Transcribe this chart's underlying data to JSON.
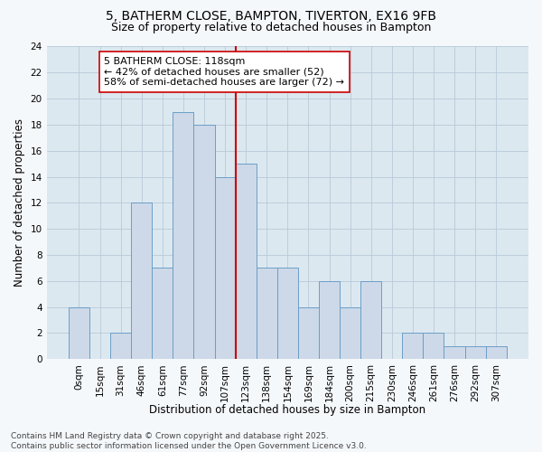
{
  "title_line1": "5, BATHERM CLOSE, BAMPTON, TIVERTON, EX16 9FB",
  "title_line2": "Size of property relative to detached houses in Bampton",
  "xlabel": "Distribution of detached houses by size in Bampton",
  "ylabel": "Number of detached properties",
  "bar_values": [
    4,
    0,
    2,
    12,
    7,
    19,
    18,
    14,
    15,
    7,
    7,
    4,
    6,
    4,
    6,
    0,
    2,
    2,
    1,
    1,
    1
  ],
  "bar_labels": [
    "0sqm",
    "15sqm",
    "31sqm",
    "46sqm",
    "61sqm",
    "77sqm",
    "92sqm",
    "107sqm",
    "123sqm",
    "138sqm",
    "154sqm",
    "169sqm",
    "184sqm",
    "200sqm",
    "215sqm",
    "230sqm",
    "246sqm",
    "261sqm",
    "276sqm",
    "292sqm",
    "307sqm"
  ],
  "bar_color": "#cdd9e8",
  "bar_edge_color": "#6b9ec8",
  "vline_x": 7.5,
  "vline_color": "#cc0000",
  "annotation_text": "5 BATHERM CLOSE: 118sqm\n← 42% of detached houses are smaller (52)\n58% of semi-detached houses are larger (72) →",
  "annotation_box_color": "#ffffff",
  "annotation_box_edge": "#cc0000",
  "ylim": [
    0,
    24
  ],
  "yticks": [
    0,
    2,
    4,
    6,
    8,
    10,
    12,
    14,
    16,
    18,
    20,
    22,
    24
  ],
  "grid_color": "#b8cad8",
  "background_color": "#dce8f0",
  "fig_background": "#f5f8fb",
  "footer_text": "Contains HM Land Registry data © Crown copyright and database right 2025.\nContains public sector information licensed under the Open Government Licence v3.0.",
  "title_fontsize": 10,
  "subtitle_fontsize": 9,
  "axis_label_fontsize": 8.5,
  "tick_fontsize": 7.5,
  "annotation_fontsize": 8,
  "footer_fontsize": 6.5
}
